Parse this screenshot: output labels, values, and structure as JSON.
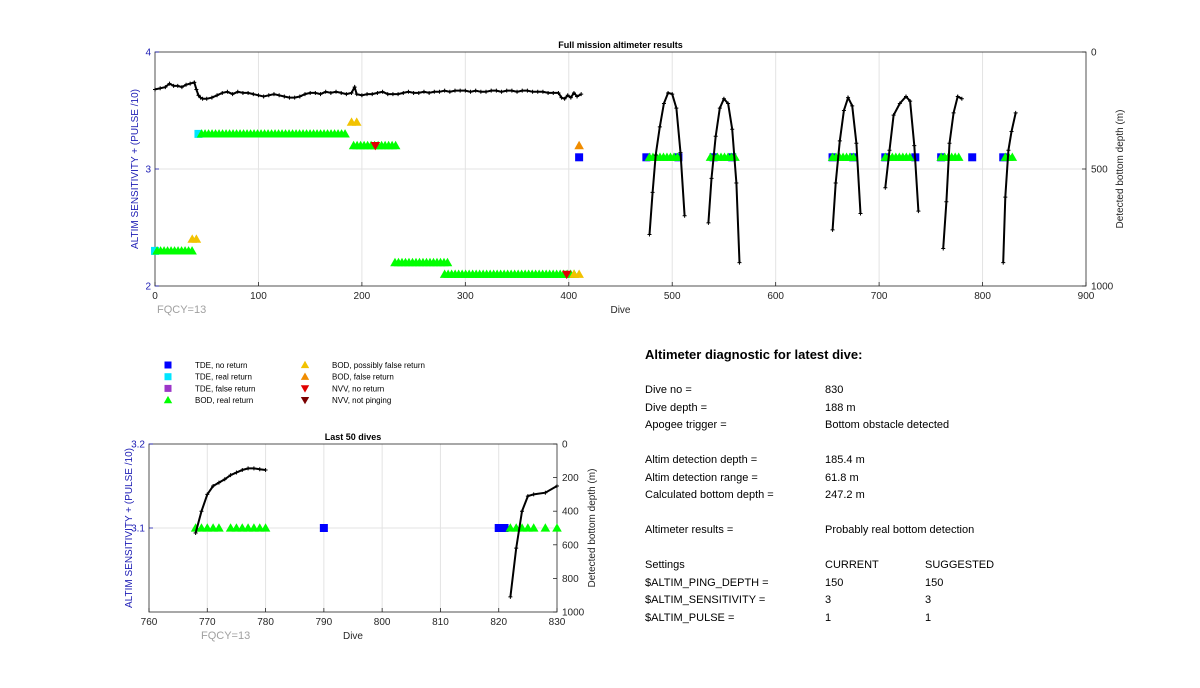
{
  "chart_data": [
    {
      "type": "scatter",
      "title": "Full mission altimeter results",
      "xlabel": "Dive",
      "ylabel_left": "ALTIM SENSITIVITY + (PULSE /10)",
      "ylabel_right": "Detected bottom depth (m)",
      "xlim": [
        0,
        900
      ],
      "xticks": [
        "0",
        "100",
        "200",
        "300",
        "400",
        "500",
        "600",
        "700",
        "800",
        "900"
      ],
      "ylim_left": [
        2,
        4
      ],
      "yticks_left": [
        "2",
        "3",
        "4"
      ],
      "ylim_right": [
        0,
        1000
      ],
      "yticks_right": [
        "0",
        "500",
        "1000"
      ],
      "right_axis_reversed": true,
      "grid": true,
      "annotation": "FQCY=13",
      "settings_series": [
        {
          "name": "TDE, no return",
          "marker": "square",
          "color": "#0000ff",
          "x": [
            410,
            475,
            506,
            540,
            558,
            655,
            675,
            706,
            735,
            760,
            790,
            820
          ],
          "y": [
            3.1,
            3.1,
            3.1,
            3.1,
            3.1,
            3.1,
            3.1,
            3.1,
            3.1,
            3.1,
            3.1,
            3.1
          ]
        },
        {
          "name": "TDE, real return",
          "marker": "square",
          "color": "#00e5ff",
          "x": [
            0,
            42
          ],
          "y": [
            2.3,
            3.3
          ]
        },
        {
          "name": "BOD, real return",
          "marker": "triangle",
          "color": "#00ff00",
          "ranges": [
            {
              "from": 2,
              "to": 38,
              "y": 2.3
            },
            {
              "from": 45,
              "to": 186,
              "y": 3.3
            },
            {
              "from": 192,
              "to": 233,
              "y": 3.2
            },
            {
              "from": 232,
              "to": 283,
              "y": 2.2
            },
            {
              "from": 280,
              "to": 408,
              "y": 2.1
            },
            {
              "from": 478,
              "to": 508,
              "y": 3.1
            },
            {
              "from": 537,
              "to": 562,
              "y": 3.1
            },
            {
              "from": 655,
              "to": 678,
              "y": 3.1
            },
            {
              "from": 706,
              "to": 732,
              "y": 3.1
            },
            {
              "from": 760,
              "to": 780,
              "y": 3.1
            },
            {
              "from": 822,
              "to": 830,
              "y": 3.1
            }
          ]
        },
        {
          "name": "BOD, possibly false return",
          "marker": "triangle",
          "color": "#f2c200",
          "x": [
            36,
            40,
            190,
            195,
            410,
            405
          ],
          "y": [
            2.4,
            2.4,
            3.4,
            3.4,
            2.1,
            2.1
          ]
        },
        {
          "name": "BOD, false return",
          "marker": "triangle",
          "color": "#f08c00",
          "x": [
            410
          ],
          "y": [
            3.2
          ]
        },
        {
          "name": "NVV, no return",
          "marker": "triangle-down",
          "color": "#e00000",
          "x": [
            213,
            398
          ],
          "y": [
            3.2,
            2.1
          ]
        }
      ],
      "depth_series": [
        {
          "name": "Detected bottom depth",
          "color": "#000000",
          "segments": [
            {
              "x": [
                0,
                5,
                10,
                14,
                18,
                22,
                26,
                30,
                34,
                38,
                40,
                42,
                44,
                46,
                50,
                55,
                60,
                65,
                70,
                75,
                80,
                85,
                90,
                95,
                100,
                105,
                110,
                115,
                120,
                125,
                130,
                135,
                140,
                145,
                150,
                155,
                160,
                165,
                170,
                175,
                180,
                185,
                190,
                193,
                195,
                200,
                205,
                210,
                215,
                220,
                225,
                230,
                235,
                240,
                245,
                250,
                255,
                260,
                265,
                270,
                275,
                280,
                285,
                290,
                295,
                300,
                305,
                310,
                315,
                320,
                325,
                330,
                335,
                340,
                345,
                350,
                355,
                360,
                365,
                370,
                375,
                380,
                385,
                390,
                393,
                396,
                399,
                402,
                405,
                408,
                412
              ],
              "y": [
                160,
                155,
                150,
                135,
                145,
                145,
                150,
                140,
                135,
                130,
                160,
                185,
                195,
                200,
                200,
                195,
                185,
                175,
                170,
                180,
                170,
                175,
                175,
                180,
                185,
                190,
                185,
                180,
                185,
                190,
                195,
                195,
                190,
                180,
                175,
                175,
                180,
                170,
                175,
                170,
                175,
                180,
                175,
                150,
                180,
                185,
                180,
                180,
                175,
                170,
                180,
                180,
                180,
                175,
                170,
                175,
                175,
                170,
                175,
                170,
                170,
                165,
                170,
                165,
                165,
                165,
                170,
                165,
                170,
                170,
                165,
                165,
                170,
                165,
                165,
                170,
                165,
                165,
                170,
                170,
                170,
                175,
                175,
                175,
                195,
                200,
                185,
                195,
                175,
                190,
                180
              ]
            },
            {
              "x": [
                478,
                481,
                484,
                488,
                492,
                496,
                500,
                504,
                508,
                512
              ],
              "y": [
                780,
                600,
                440,
                320,
                220,
                175,
                180,
                240,
                430,
                700
              ]
            },
            {
              "x": [
                535,
                538,
                542,
                546,
                550,
                554,
                558,
                562,
                565
              ],
              "y": [
                730,
                540,
                360,
                240,
                200,
                220,
                330,
                560,
                900
              ]
            },
            {
              "x": [
                655,
                658,
                662,
                666,
                670,
                674,
                678,
                682
              ],
              "y": [
                760,
                560,
                380,
                250,
                195,
                230,
                390,
                690
              ]
            },
            {
              "x": [
                706,
                710,
                714,
                720,
                726,
                730,
                734,
                738
              ],
              "y": [
                580,
                420,
                270,
                220,
                190,
                210,
                400,
                680
              ]
            },
            {
              "x": [
                762,
                765,
                768,
                772,
                776,
                780
              ],
              "y": [
                840,
                640,
                390,
                260,
                190,
                200
              ]
            },
            {
              "x": [
                820,
                822,
                825,
                828,
                832
              ],
              "y": [
                900,
                620,
                420,
                340,
                260
              ]
            }
          ]
        }
      ]
    },
    {
      "type": "scatter",
      "title": "Last 50 dives",
      "xlabel": "Dive",
      "ylabel_left": "ALTIM SENSITIVITY + (PULSE /10)",
      "ylabel_right": "Detected bottom depth (m)",
      "xlim": [
        760,
        830
      ],
      "xticks": [
        "760",
        "770",
        "780",
        "790",
        "800",
        "810",
        "820",
        "830"
      ],
      "ylim_left": [
        3.0,
        3.2
      ],
      "yticks_left": [
        "3.1",
        "3.2"
      ],
      "ylim_right": [
        0,
        1000
      ],
      "yticks_right": [
        "0",
        "200",
        "400",
        "600",
        "800",
        "1000"
      ],
      "right_axis_reversed": true,
      "grid": true,
      "annotation": "FQCY=13",
      "settings_series": [
        {
          "name": "TDE, no return",
          "marker": "square",
          "color": "#0000ff",
          "x": [
            790,
            820,
            821
          ],
          "y": [
            3.1,
            3.1,
            3.1
          ]
        },
        {
          "name": "BOD, real return",
          "marker": "triangle",
          "color": "#00ff00",
          "x": [
            768,
            769,
            770,
            771,
            772,
            774,
            775,
            776,
            777,
            778,
            779,
            780,
            822,
            823,
            824,
            825,
            826,
            828,
            830
          ],
          "y": [
            3.1,
            3.1,
            3.1,
            3.1,
            3.1,
            3.1,
            3.1,
            3.1,
            3.1,
            3.1,
            3.1,
            3.1,
            3.1,
            3.1,
            3.1,
            3.1,
            3.1,
            3.1,
            3.1
          ]
        }
      ],
      "depth_series": [
        {
          "name": "Detected bottom depth",
          "color": "#000000",
          "segments": [
            {
              "x": [
                768,
                769,
                770,
                771,
                772,
                773,
                774,
                775,
                776,
                777,
                778,
                779,
                780
              ],
              "y": [
                530,
                400,
                300,
                250,
                230,
                210,
                185,
                170,
                155,
                145,
                145,
                150,
                155
              ]
            },
            {
              "x": [
                822,
                823,
                824,
                825,
                826,
                828,
                830
              ],
              "y": [
                910,
                620,
                400,
                310,
                300,
                290,
                250
              ]
            }
          ]
        }
      ]
    }
  ],
  "legend": {
    "items": [
      {
        "label": "TDE, no return",
        "marker": "square",
        "color": "#0000ff"
      },
      {
        "label": "TDE, real return",
        "marker": "square",
        "color": "#00e5ff"
      },
      {
        "label": "TDE, false return",
        "marker": "square",
        "color": "#9c36c8"
      },
      {
        "label": "BOD, real return",
        "marker": "triangle",
        "color": "#00ff00"
      },
      {
        "label": "BOD, possibly false return",
        "marker": "triangle",
        "color": "#f2c200"
      },
      {
        "label": "BOD, false return",
        "marker": "triangle",
        "color": "#f08c00"
      },
      {
        "label": "NVV, no return",
        "marker": "triangle-down",
        "color": "#e00000"
      },
      {
        "label": "NVV, not pinging",
        "marker": "triangle-down",
        "color": "#7a0000"
      }
    ]
  },
  "diagnostic": {
    "title": "Altimeter diagnostic for latest dive:",
    "rows1": [
      {
        "label": "Dive no =",
        "value": "830"
      },
      {
        "label": "Dive depth =",
        "value": "188 m"
      },
      {
        "label": "Apogee trigger =",
        "value": "Bottom obstacle detected"
      }
    ],
    "rows2": [
      {
        "label": "Altim detection depth =",
        "value": "185.4 m"
      },
      {
        "label": "Altim detection range =",
        "value": "61.8 m"
      },
      {
        "label": "Calculated bottom depth =",
        "value": "247.2 m"
      }
    ],
    "result": {
      "label": "Altimeter results =",
      "value": "Probably real bottom detection"
    },
    "settings_header": {
      "label": "Settings",
      "current": "CURRENT",
      "suggested": "SUGGESTED"
    },
    "settings": [
      {
        "label": "$ALTIM_PING_DEPTH =",
        "current": "150",
        "suggested": "150"
      },
      {
        "label": "$ALTIM_SENSITIVITY =",
        "current": "3",
        "suggested": "3"
      },
      {
        "label": "$ALTIM_PULSE =",
        "current": "1",
        "suggested": "1"
      }
    ]
  }
}
